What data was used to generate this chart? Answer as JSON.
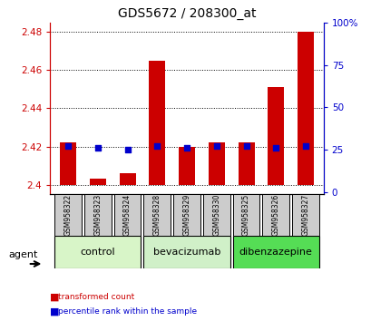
{
  "title": "GDS5672 / 208300_at",
  "samples": [
    "GSM958322",
    "GSM958323",
    "GSM958324",
    "GSM958328",
    "GSM958329",
    "GSM958330",
    "GSM958325",
    "GSM958326",
    "GSM958327"
  ],
  "red_values": [
    2.422,
    2.403,
    2.406,
    2.465,
    2.42,
    2.422,
    2.422,
    2.451,
    2.48
  ],
  "blue_values": [
    27,
    26,
    25,
    27,
    26,
    27,
    27,
    26,
    27
  ],
  "groups": [
    {
      "label": "control",
      "start": 0,
      "end": 2,
      "color": "#d8f5c8"
    },
    {
      "label": "bevacizumab",
      "start": 3,
      "end": 5,
      "color": "#d0f0c8"
    },
    {
      "label": "dibenzazepine",
      "start": 6,
      "end": 8,
      "color": "#55dd55"
    }
  ],
  "ylim_left": [
    2.395,
    2.485
  ],
  "ylim_right": [
    -1.25,
    100
  ],
  "yticks_left": [
    2.4,
    2.42,
    2.44,
    2.46,
    2.48
  ],
  "ytick_labels_left": [
    "2.4",
    "2.42",
    "2.44",
    "2.46",
    "2.48"
  ],
  "yticks_right": [
    0,
    25,
    50,
    75,
    100
  ],
  "ytick_labels_right": [
    "0",
    "25",
    "50",
    "75",
    "100%"
  ],
  "bar_width": 0.55,
  "base_value": 2.4,
  "legend_items": [
    {
      "label": "transformed count",
      "color": "#cc0000"
    },
    {
      "label": "percentile rank within the sample",
      "color": "#0000cc"
    }
  ],
  "agent_label": "agent",
  "left_color": "#cc0000",
  "right_color": "#0000cc",
  "sample_box_color": "#cccccc",
  "grid_color": "#000000",
  "title_fontsize": 10,
  "tick_fontsize": 7.5,
  "sample_fontsize": 5.5,
  "group_fontsize": 8,
  "legend_fontsize": 6.5
}
